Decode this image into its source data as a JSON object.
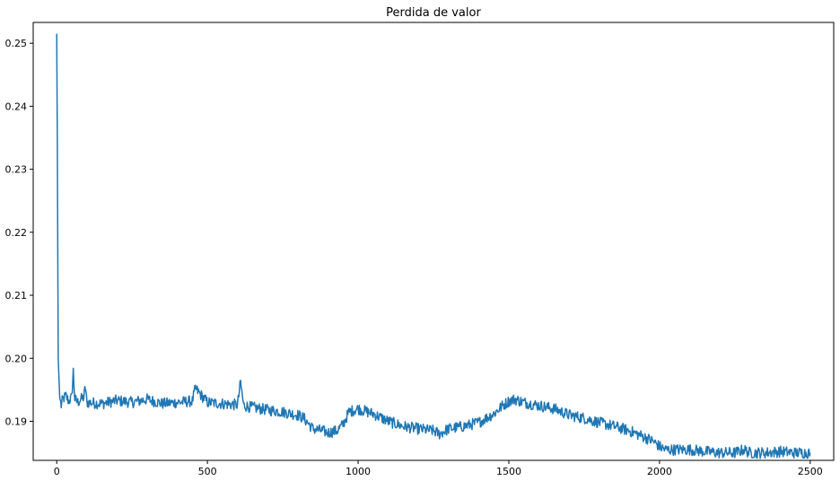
{
  "chart_data": {
    "type": "line",
    "title": "Perdida de valor",
    "xlabel": "",
    "ylabel": "",
    "xlim": [
      -78,
      2578
    ],
    "ylim": [
      0.1838,
      0.2533
    ],
    "xticks": [
      0,
      500,
      1000,
      1500,
      2000,
      2500
    ],
    "yticks": [
      0.19,
      0.2,
      0.21,
      0.22,
      0.23,
      0.24,
      0.25
    ],
    "xtick_labels": [
      "0",
      "500",
      "1000",
      "1500",
      "2000",
      "2500"
    ],
    "ytick_labels": [
      "0.19",
      "0.20",
      "0.21",
      "0.22",
      "0.23",
      "0.24",
      "0.25"
    ],
    "grid": false,
    "legend": "none",
    "series": [
      {
        "color": "#1f77b4",
        "x": [
          0,
          2,
          5,
          10,
          15,
          20,
          30,
          40,
          50,
          55,
          60,
          70,
          80,
          90,
          95,
          100,
          150,
          200,
          250,
          300,
          350,
          400,
          450,
          460,
          500,
          550,
          600,
          610,
          620,
          650,
          700,
          750,
          800,
          820,
          850,
          880,
          900,
          930,
          950,
          970,
          1000,
          1030,
          1050,
          1100,
          1150,
          1200,
          1250,
          1270,
          1300,
          1350,
          1400,
          1450,
          1480,
          1500,
          1520,
          1550,
          1600,
          1650,
          1700,
          1750,
          1800,
          1850,
          1900,
          1950,
          1980,
          2000,
          2020,
          2050,
          2100,
          2150,
          2200,
          2250,
          2280,
          2300,
          2350,
          2400,
          2450,
          2500
        ],
        "y": [
          0.2515,
          0.235,
          0.2,
          0.1938,
          0.1925,
          0.1935,
          0.194,
          0.1932,
          0.1938,
          0.198,
          0.1935,
          0.193,
          0.1935,
          0.1938,
          0.1955,
          0.193,
          0.1928,
          0.1933,
          0.193,
          0.1935,
          0.1928,
          0.193,
          0.1932,
          0.1952,
          0.193,
          0.1928,
          0.1926,
          0.1962,
          0.1925,
          0.1922,
          0.1918,
          0.1915,
          0.191,
          0.1905,
          0.1888,
          0.1885,
          0.1882,
          0.1885,
          0.1895,
          0.1915,
          0.192,
          0.1915,
          0.1912,
          0.19,
          0.1892,
          0.1888,
          0.1885,
          0.188,
          0.1888,
          0.1892,
          0.1898,
          0.1912,
          0.1925,
          0.1932,
          0.1935,
          0.193,
          0.1925,
          0.192,
          0.191,
          0.1905,
          0.1898,
          0.1892,
          0.1885,
          0.1875,
          0.1868,
          0.186,
          0.1855,
          0.1855,
          0.1855,
          0.1852,
          0.185,
          0.185,
          0.1855,
          0.185,
          0.185,
          0.1852,
          0.185,
          0.185
        ]
      }
    ]
  }
}
